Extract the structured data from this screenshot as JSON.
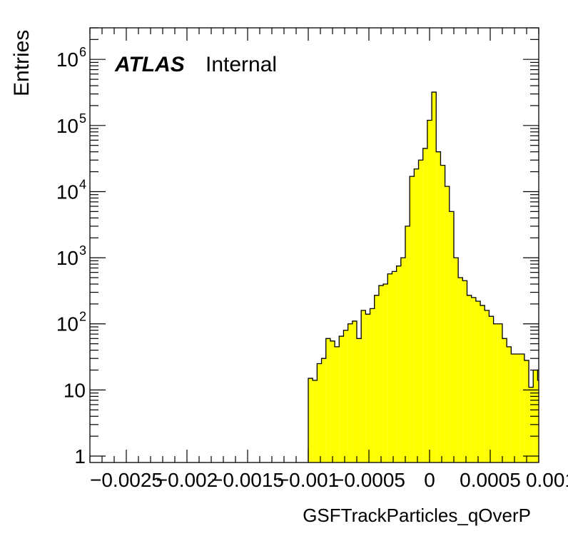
{
  "chart_data": {
    "type": "bar",
    "title": "",
    "label_bold": "ATLAS",
    "label_text": "Internal",
    "xlabel": "GSFTrackParticles_qOverP",
    "ylabel": "Entries",
    "yscale": "log",
    "xlim": [
      -0.0028,
      0.0009
    ],
    "ylim": [
      0.8,
      3000000
    ],
    "x_ticks": [
      {
        "value": -0.0025,
        "label": "−0.0025"
      },
      {
        "value": -0.002,
        "label": "−0.002"
      },
      {
        "value": -0.0015,
        "label": "−0.0015"
      },
      {
        "value": -0.001,
        "label": "−0.001"
      },
      {
        "value": -0.0005,
        "label": "−0.0005"
      },
      {
        "value": 0,
        "label": "0"
      },
      {
        "value": 0.0005,
        "label": "0.0005"
      },
      {
        "value": 0.001,
        "label": "0.001"
      }
    ],
    "y_ticks": [
      {
        "value": 1,
        "base": "1",
        "exp": ""
      },
      {
        "value": 10,
        "base": "10",
        "exp": ""
      },
      {
        "value": 100,
        "base": "10",
        "exp": "2"
      },
      {
        "value": 1000,
        "base": "10",
        "exp": "3"
      },
      {
        "value": 10000,
        "base": "10",
        "exp": "4"
      },
      {
        "value": 100000,
        "base": "10",
        "exp": "5"
      },
      {
        "value": 1000000,
        "base": "10",
        "exp": "6"
      }
    ],
    "bin_start": -0.001,
    "bin_width": 3.636e-05,
    "values": [
      15,
      14,
      25,
      30,
      60,
      55,
      45,
      65,
      80,
      100,
      110,
      60,
      160,
      140,
      170,
      270,
      380,
      400,
      570,
      620,
      750,
      1000,
      3000,
      17000,
      22000,
      30000,
      45000,
      120000,
      320000,
      40000,
      25000,
      12000,
      5000,
      1000,
      500,
      450,
      270,
      250,
      220,
      190,
      160,
      130,
      100,
      100,
      60,
      45,
      35,
      35,
      35,
      28,
      11,
      20,
      14
    ],
    "fill_color": "#ffff00",
    "line_color": "#000000",
    "grid": false,
    "legend": "none"
  }
}
